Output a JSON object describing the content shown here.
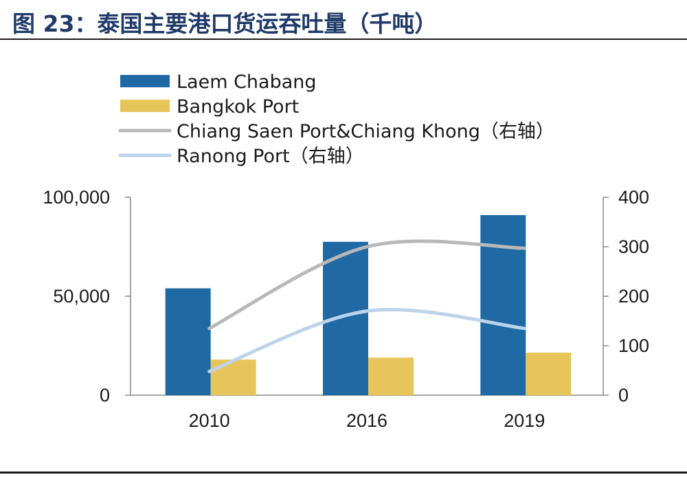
{
  "header": {
    "title": "图 23：泰国主要港口货运吞吐量（千吨）"
  },
  "chart_data": {
    "type": "bar",
    "categories": [
      "2010",
      "2016",
      "2019"
    ],
    "series": [
      {
        "name": "Laem Chabang",
        "type": "bar",
        "axis": "left",
        "values": [
          54000,
          77500,
          91000
        ],
        "color": "#1f6aa5"
      },
      {
        "name": "Bangkok Port",
        "type": "bar",
        "axis": "left",
        "values": [
          18000,
          19000,
          21500
        ],
        "color": "#e8c55a"
      },
      {
        "name": "Chiang Saen Port&Chiang Khong（右轴）",
        "type": "line",
        "axis": "right",
        "values": [
          135,
          300,
          297
        ],
        "color": "#b8b8b8"
      },
      {
        "name": "Ranong Port（右轴）",
        "type": "line",
        "axis": "right",
        "values": [
          48,
          170,
          135
        ],
        "color": "#bcd3ea"
      }
    ],
    "ylim_left": [
      0,
      100000
    ],
    "yticks_left": [
      "0",
      "50,000",
      "100,000"
    ],
    "ylim_right": [
      0,
      400
    ],
    "yticks_right": [
      "0",
      "100",
      "200",
      "300",
      "400"
    ],
    "legend": "top-left",
    "grid": false
  }
}
